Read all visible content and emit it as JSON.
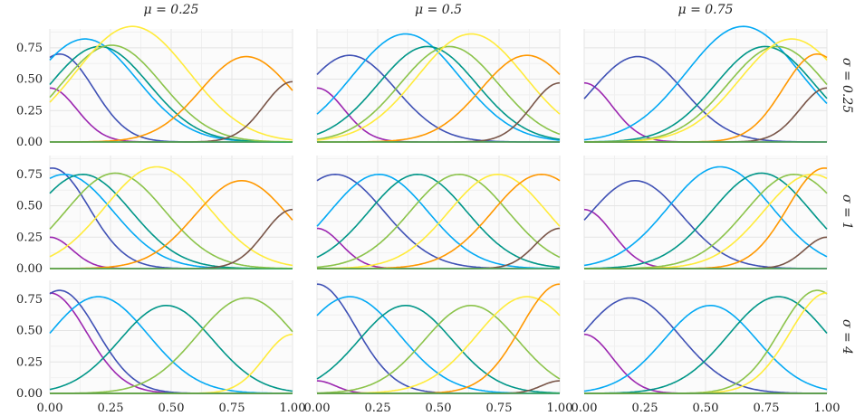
{
  "chart_data": {
    "type": "line",
    "layout": "3x3 facet grid",
    "col_labels": [
      "μ = 0.25",
      "μ = 0.5",
      "μ = 0.75"
    ],
    "row_labels": [
      "σ = 0.25",
      "σ = 1",
      "σ = 4"
    ],
    "mu": [
      0.25,
      0.5,
      0.75
    ],
    "sigma": [
      0.25,
      1,
      4
    ],
    "xlim": [
      0,
      1
    ],
    "ylim": [
      0,
      0.9
    ],
    "x_ticks": [
      "0.00",
      "0.25",
      "0.50",
      "0.75",
      "1.00"
    ],
    "y_ticks": [
      "0.00",
      "0.25",
      "0.50",
      "0.75"
    ],
    "grid": true,
    "series_colors": [
      "#9c27b0",
      "#3f51b5",
      "#03a9f4",
      "#009688",
      "#8bc34a",
      "#ffeb3b",
      "#ff9800",
      "#795548",
      "#4caf50"
    ],
    "panels": [
      {
        "row": 0,
        "col": 0,
        "peaks": [
          {
            "x": 0.0,
            "y": 0.43
          },
          {
            "x": 0.04,
            "y": 0.7
          },
          {
            "x": 0.145,
            "y": 0.82
          },
          {
            "x": 0.205,
            "y": 0.76
          },
          {
            "x": 0.255,
            "y": 0.77
          },
          {
            "x": 0.34,
            "y": 0.92
          },
          {
            "x": 0.81,
            "y": 0.68
          },
          {
            "x": 1.0,
            "y": 0.48
          },
          {
            "x": 1.0,
            "y": 0.0
          }
        ]
      },
      {
        "row": 0,
        "col": 1,
        "peaks": [
          {
            "x": 0.0,
            "y": 0.43
          },
          {
            "x": 0.135,
            "y": 0.69
          },
          {
            "x": 0.365,
            "y": 0.86
          },
          {
            "x": 0.455,
            "y": 0.76
          },
          {
            "x": 0.545,
            "y": 0.76
          },
          {
            "x": 0.635,
            "y": 0.86
          },
          {
            "x": 0.865,
            "y": 0.69
          },
          {
            "x": 1.0,
            "y": 0.47
          },
          {
            "x": 1.0,
            "y": 0.0
          }
        ]
      },
      {
        "row": 0,
        "col": 2,
        "peaks": [
          {
            "x": 0.0,
            "y": 0.47
          },
          {
            "x": 0.22,
            "y": 0.68
          },
          {
            "x": 0.655,
            "y": 0.92
          },
          {
            "x": 0.745,
            "y": 0.76
          },
          {
            "x": 0.795,
            "y": 0.76
          },
          {
            "x": 0.855,
            "y": 0.82
          },
          {
            "x": 0.96,
            "y": 0.7
          },
          {
            "x": 1.0,
            "y": 0.43
          },
          {
            "x": 1.0,
            "y": 0.0
          }
        ]
      },
      {
        "row": 1,
        "col": 0,
        "peaks": [
          {
            "x": 0.0,
            "y": 0.25
          },
          {
            "x": 0.01,
            "y": 0.8
          },
          {
            "x": 0.06,
            "y": 0.75
          },
          {
            "x": 0.135,
            "y": 0.75
          },
          {
            "x": 0.27,
            "y": 0.76
          },
          {
            "x": 0.44,
            "y": 0.81
          },
          {
            "x": 0.79,
            "y": 0.7
          },
          {
            "x": 1.0,
            "y": 0.47
          },
          {
            "x": 1.0,
            "y": 0.0
          }
        ]
      },
      {
        "row": 1,
        "col": 1,
        "peaks": [
          {
            "x": 0.0,
            "y": 0.32
          },
          {
            "x": 0.075,
            "y": 0.75
          },
          {
            "x": 0.255,
            "y": 0.75
          },
          {
            "x": 0.415,
            "y": 0.75
          },
          {
            "x": 0.585,
            "y": 0.75
          },
          {
            "x": 0.745,
            "y": 0.75
          },
          {
            "x": 0.925,
            "y": 0.75
          },
          {
            "x": 1.0,
            "y": 0.32
          },
          {
            "x": 1.0,
            "y": 0.0
          }
        ]
      },
      {
        "row": 1,
        "col": 2,
        "peaks": [
          {
            "x": 0.0,
            "y": 0.47
          },
          {
            "x": 0.21,
            "y": 0.7
          },
          {
            "x": 0.56,
            "y": 0.81
          },
          {
            "x": 0.73,
            "y": 0.76
          },
          {
            "x": 0.865,
            "y": 0.75
          },
          {
            "x": 0.94,
            "y": 0.75
          },
          {
            "x": 0.99,
            "y": 0.8
          },
          {
            "x": 1.0,
            "y": 0.25
          },
          {
            "x": 1.0,
            "y": 0.0
          }
        ]
      },
      {
        "row": 2,
        "col": 0,
        "peaks": [
          {
            "x": 0.0,
            "y": 0.8
          },
          {
            "x": 0.04,
            "y": 0.82
          },
          {
            "x": 0.2,
            "y": 0.77
          },
          {
            "x": 0.48,
            "y": 0.7
          },
          {
            "x": 0.81,
            "y": 0.76
          },
          {
            "x": 1.0,
            "y": 0.47
          },
          {
            "x": 1.0,
            "y": 0.0
          },
          {
            "x": 1.0,
            "y": 0.0
          },
          {
            "x": 1.0,
            "y": 0.0
          }
        ]
      },
      {
        "row": 2,
        "col": 1,
        "peaks": [
          {
            "x": 0.0,
            "y": 0.1
          },
          {
            "x": 0.0,
            "y": 0.87
          },
          {
            "x": 0.135,
            "y": 0.77
          },
          {
            "x": 0.365,
            "y": 0.7
          },
          {
            "x": 0.635,
            "y": 0.7
          },
          {
            "x": 0.865,
            "y": 0.77
          },
          {
            "x": 1.0,
            "y": 0.87
          },
          {
            "x": 1.0,
            "y": 0.1
          },
          {
            "x": 1.0,
            "y": 0.0
          }
        ]
      },
      {
        "row": 2,
        "col": 2,
        "peaks": [
          {
            "x": 0.0,
            "y": 0.47
          },
          {
            "x": 0.19,
            "y": 0.76
          },
          {
            "x": 0.52,
            "y": 0.7
          },
          {
            "x": 0.8,
            "y": 0.77
          },
          {
            "x": 0.96,
            "y": 0.82
          },
          {
            "x": 1.0,
            "y": 0.8
          },
          {
            "x": 1.0,
            "y": 0.0
          },
          {
            "x": 1.0,
            "y": 0.0
          },
          {
            "x": 1.0,
            "y": 0.0
          }
        ]
      }
    ]
  }
}
